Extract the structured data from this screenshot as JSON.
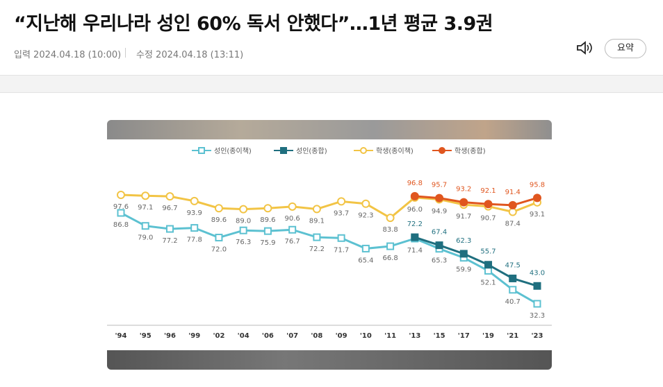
{
  "header": {
    "title": "“지난해 우리나라 성인 60% 독서 안했다”…1년 평균 3.9권",
    "published": "입력 2024.04.18 (10:00)",
    "modified": "수정 2024.04.18 (13:11)",
    "summary_button": "요약"
  },
  "chart_data": {
    "type": "line",
    "categories": [
      "'94",
      "'95",
      "'96",
      "'99",
      "'02",
      "'04",
      "'06",
      "'07",
      "'08",
      "'09",
      "'10",
      "'11",
      "'13",
      "'15",
      "'17",
      "'19",
      "'21",
      "'23"
    ],
    "series": [
      {
        "name": "성인(종이책)",
        "color": "#5cc1d1",
        "marker": "square",
        "values": [
          86.8,
          79.0,
          77.2,
          77.8,
          72.0,
          76.3,
          75.9,
          76.7,
          72.2,
          71.7,
          65.4,
          66.8,
          71.4,
          65.3,
          59.9,
          52.1,
          40.7,
          32.3
        ],
        "value_labels": [
          "86.8",
          "79.0",
          "77.2",
          "77.8",
          "72.0",
          "76.3",
          "75.9",
          "76.7",
          "72.2",
          "71.7",
          "65.4",
          "66.8",
          "71.4",
          "65.3",
          "59.9",
          "52.1",
          "40.7",
          "32.3"
        ]
      },
      {
        "name": "성인(종합)",
        "color": "#1f6f7f",
        "marker": "square",
        "values": [
          null,
          null,
          null,
          null,
          null,
          null,
          null,
          null,
          null,
          null,
          null,
          null,
          72.2,
          67.4,
          62.3,
          55.7,
          47.5,
          43.0
        ],
        "value_labels": [
          null,
          null,
          null,
          null,
          null,
          null,
          null,
          null,
          null,
          null,
          null,
          null,
          "72.2",
          "67.4",
          "62.3",
          "55.7",
          "47.5",
          "43.0"
        ]
      },
      {
        "name": "학생(종이책)",
        "color": "#f2c445",
        "marker": "circle",
        "values": [
          97.6,
          97.1,
          96.7,
          93.9,
          89.6,
          89.0,
          89.6,
          90.6,
          89.1,
          93.7,
          92.3,
          83.8,
          96.0,
          94.9,
          91.7,
          90.7,
          87.4,
          93.1
        ],
        "value_labels": [
          "97.6",
          "97.1",
          "96.7",
          "93.9",
          "89.6",
          "89.0",
          "89.6",
          "90.6",
          "89.1",
          "93.7",
          "92.3",
          "83.8",
          "96.0",
          "94.9",
          "91.7",
          "90.7",
          "87.4",
          "93.1"
        ]
      },
      {
        "name": "학생(종합)",
        "color": "#e0561f",
        "marker": "circle",
        "values": [
          null,
          null,
          null,
          null,
          null,
          null,
          null,
          null,
          null,
          null,
          null,
          null,
          96.8,
          95.7,
          93.2,
          92.1,
          91.4,
          95.8
        ],
        "value_labels": [
          null,
          null,
          null,
          null,
          null,
          null,
          null,
          null,
          null,
          null,
          null,
          null,
          "96.8",
          "95.7",
          "93.2",
          "92.1",
          "91.4",
          "95.8"
        ]
      }
    ]
  }
}
